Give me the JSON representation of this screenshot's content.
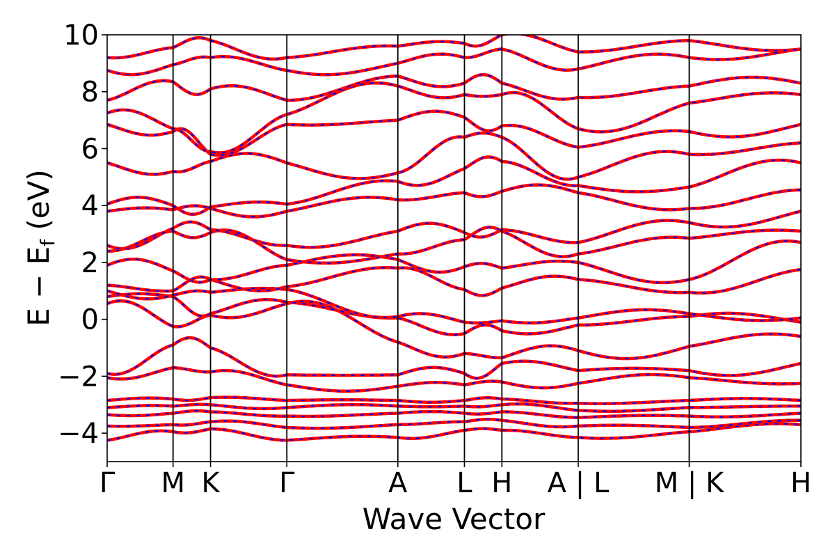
{
  "chart_data": {
    "type": "line",
    "title": "",
    "xlabel": "Wave Vector",
    "ylabel": "E − E_f (eV)",
    "ylabel_main": "E − E",
    "ylabel_sub": "f",
    "ylabel_unit": " (eV)",
    "ylim": [
      -5,
      10
    ],
    "yticks": [
      -4,
      -2,
      0,
      2,
      4,
      6,
      8,
      10
    ],
    "ytick_labels": [
      "−4",
      "−2",
      "0",
      "2",
      "4",
      "6",
      "8",
      "10"
    ],
    "grid": false,
    "xlim": [
      0,
      10.0
    ],
    "kpoints": [
      {
        "label": "Γ",
        "x": 0.0
      },
      {
        "label": "M",
        "x": 0.95
      },
      {
        "label": "K",
        "x": 1.49
      },
      {
        "label": "Γ",
        "x": 2.59
      },
      {
        "label": "A",
        "x": 4.19
      },
      {
        "label": "L",
        "x": 5.15
      },
      {
        "label": "H",
        "x": 5.69
      },
      {
        "label": "A | L",
        "x": 6.79
      },
      {
        "label": "M | K",
        "x": 8.39
      },
      {
        "label": "H",
        "x": 10.0
      }
    ],
    "series_styles": [
      {
        "role": "solid",
        "color": "#ff0000"
      },
      {
        "role": "dashed",
        "color": "#0000ff"
      }
    ],
    "band_energies_at_kpoints": [
      [
        -4.25,
        -3.95,
        -3.85,
        -4.25,
        -4.15,
        -3.9,
        -3.9,
        -4.15,
        -3.95,
        -3.7
      ],
      [
        -3.75,
        -3.7,
        -3.6,
        -3.8,
        -3.7,
        -3.6,
        -3.55,
        -3.75,
        -3.8,
        -3.55
      ],
      [
        -3.35,
        -3.3,
        -3.25,
        -3.4,
        -3.3,
        -3.3,
        -3.25,
        -3.45,
        -3.4,
        -3.3
      ],
      [
        -3.1,
        -3.05,
        -3.0,
        -3.1,
        -3.05,
        -3.05,
        -3.0,
        -3.2,
        -3.1,
        -3.05
      ],
      [
        -2.85,
        -2.8,
        -2.75,
        -2.85,
        -2.85,
        -2.85,
        -2.8,
        -2.95,
        -2.85,
        -2.85
      ],
      [
        -2.05,
        -1.7,
        -1.85,
        -2.3,
        -2.35,
        -2.3,
        -2.2,
        -2.25,
        -2.05,
        -2.25
      ],
      [
        -1.9,
        -0.9,
        -1.0,
        -1.95,
        -1.95,
        -1.9,
        -1.55,
        -1.8,
        -1.8,
        -1.55
      ],
      [
        0.55,
        -0.25,
        0.15,
        0.55,
        -0.8,
        -1.2,
        -1.35,
        -1.1,
        -0.95,
        -0.6
      ],
      [
        0.8,
        0.8,
        0.2,
        0.6,
        0.05,
        -0.5,
        -0.4,
        -0.2,
        0.1,
        -0.1
      ],
      [
        1.0,
        0.85,
        0.95,
        1.05,
        0.1,
        -0.1,
        -0.05,
        0.05,
        0.2,
        0.05
      ],
      [
        1.2,
        1.0,
        1.4,
        1.15,
        1.8,
        1.05,
        1.1,
        1.4,
        0.95,
        1.75
      ],
      [
        1.9,
        1.7,
        1.4,
        1.9,
        2.1,
        1.85,
        1.8,
        2.0,
        1.4,
        2.7
      ],
      [
        2.4,
        3.1,
        3.05,
        2.1,
        2.3,
        2.8,
        3.1,
        2.3,
        2.85,
        3.1
      ],
      [
        2.6,
        3.2,
        3.15,
        2.6,
        3.1,
        3.05,
        3.15,
        2.7,
        3.4,
        3.8
      ],
      [
        3.8,
        3.85,
        3.9,
        3.8,
        4.2,
        4.45,
        4.5,
        4.45,
        3.9,
        4.55
      ],
      [
        4.05,
        4.0,
        3.95,
        4.05,
        4.85,
        5.3,
        5.55,
        4.7,
        4.65,
        5.5
      ],
      [
        5.5,
        5.2,
        5.55,
        5.5,
        5.15,
        6.4,
        6.4,
        5.0,
        5.8,
        6.2
      ],
      [
        6.85,
        6.6,
        5.8,
        6.85,
        7.0,
        7.1,
        6.8,
        6.05,
        6.6,
        6.85
      ],
      [
        7.25,
        6.7,
        5.9,
        7.2,
        8.2,
        7.9,
        7.9,
        6.7,
        7.6,
        7.9
      ],
      [
        7.7,
        8.35,
        8.1,
        7.7,
        8.55,
        8.3,
        8.3,
        7.8,
        8.2,
        8.3
      ],
      [
        8.75,
        8.95,
        9.2,
        8.75,
        9.0,
        9.2,
        9.5,
        8.8,
        9.2,
        9.5
      ],
      [
        9.2,
        9.55,
        9.8,
        9.2,
        9.6,
        9.7,
        10.0,
        9.4,
        9.8,
        9.5
      ]
    ],
    "band_wiggle_amplitudes": [
      0.1,
      0.08,
      0.06,
      0.08,
      0.07,
      0.2,
      0.3,
      0.35,
      0.25,
      0.2,
      0.25,
      0.3,
      0.3,
      0.3,
      0.25,
      0.3,
      0.35,
      0.3,
      0.35,
      0.3,
      0.25,
      0.2
    ]
  }
}
